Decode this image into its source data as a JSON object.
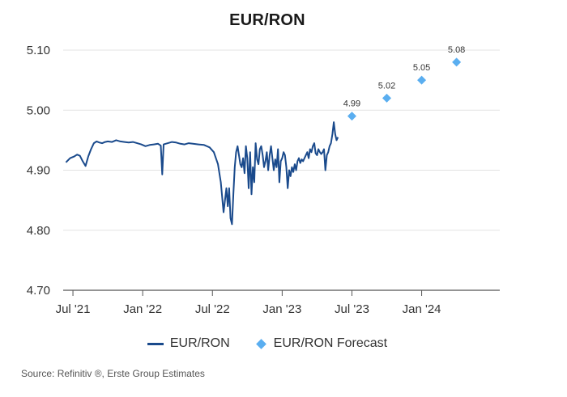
{
  "chart_data": {
    "type": "line",
    "title": "EUR/RON",
    "xlabel": "",
    "ylabel": "",
    "ylim": [
      4.7,
      5.1
    ],
    "yticks": [
      4.7,
      4.8,
      4.9,
      5.0,
      5.1
    ],
    "ytick_labels": [
      "4.70",
      "4.80",
      "4.90",
      "5.00",
      "5.10"
    ],
    "xlim": [
      2021.5,
      2024.5
    ],
    "xticks": [
      2021.5,
      2022.0,
      2022.5,
      2023.0,
      2023.5,
      2024.0
    ],
    "xtick_labels": [
      "Jul '21",
      "Jan '22",
      "Jul '22",
      "Jan '23",
      "Jul '23",
      "Jan '24"
    ],
    "grid": "horizontal",
    "legend_position": "bottom-center",
    "series": [
      {
        "name": "EUR/RON",
        "type": "line",
        "color": "#1a4a8c",
        "x": [
          2021.45,
          2021.48,
          2021.51,
          2021.53,
          2021.55,
          2021.57,
          2021.59,
          2021.61,
          2021.63,
          2021.65,
          2021.67,
          2021.69,
          2021.71,
          2021.73,
          2021.75,
          2021.78,
          2021.81,
          2021.84,
          2021.87,
          2021.9,
          2021.93,
          2021.96,
          2021.99,
          2022.02,
          2022.05,
          2022.08,
          2022.11,
          2022.13,
          2022.14,
          2022.15,
          2022.18,
          2022.21,
          2022.24,
          2022.27,
          2022.3,
          2022.33,
          2022.36,
          2022.4,
          2022.44,
          2022.48,
          2022.51,
          2022.54,
          2022.56,
          2022.58,
          2022.6,
          2022.61,
          2022.62,
          2022.63,
          2022.64,
          2022.65,
          2022.66,
          2022.67,
          2022.68,
          2022.69,
          2022.7,
          2022.71,
          2022.72,
          2022.73,
          2022.74,
          2022.75,
          2022.76,
          2022.77,
          2022.78,
          2022.79,
          2022.8,
          2022.81,
          2022.82,
          2022.83,
          2022.84,
          2022.85,
          2022.86,
          2022.87,
          2022.88,
          2022.89,
          2022.9,
          2022.91,
          2022.92,
          2022.93,
          2022.94,
          2022.95,
          2022.96,
          2022.97,
          2022.98,
          2022.99,
          2023.0,
          2023.01,
          2023.02,
          2023.03,
          2023.04,
          2023.05,
          2023.06,
          2023.07,
          2023.08,
          2023.09,
          2023.1,
          2023.11,
          2023.12,
          2023.13,
          2023.14,
          2023.15,
          2023.16,
          2023.17,
          2023.18,
          2023.19,
          2023.2,
          2023.21,
          2023.22,
          2023.23,
          2023.24,
          2023.25,
          2023.26,
          2023.27,
          2023.28,
          2023.29,
          2023.3,
          2023.31,
          2023.32,
          2023.33,
          2023.34,
          2023.35,
          2023.36,
          2023.37,
          2023.38,
          2023.39,
          2023.4
        ],
        "y": [
          4.913,
          4.92,
          4.923,
          4.926,
          4.924,
          4.915,
          4.907,
          4.923,
          4.935,
          4.945,
          4.948,
          4.946,
          4.945,
          4.947,
          4.948,
          4.947,
          4.95,
          4.948,
          4.947,
          4.946,
          4.947,
          4.945,
          4.943,
          4.94,
          4.942,
          4.943,
          4.944,
          4.941,
          4.893,
          4.943,
          4.945,
          4.947,
          4.946,
          4.944,
          4.943,
          4.945,
          4.944,
          4.943,
          4.942,
          4.938,
          4.93,
          4.91,
          4.88,
          4.83,
          4.87,
          4.84,
          4.87,
          4.82,
          4.81,
          4.86,
          4.905,
          4.93,
          4.94,
          4.925,
          4.91,
          4.905,
          4.92,
          4.895,
          4.94,
          4.92,
          4.87,
          4.93,
          4.86,
          4.905,
          4.88,
          4.945,
          4.918,
          4.91,
          4.935,
          4.94,
          4.925,
          4.905,
          4.915,
          4.93,
          4.9,
          4.925,
          4.94,
          4.92,
          4.9,
          4.918,
          4.905,
          4.935,
          4.88,
          4.915,
          4.92,
          4.93,
          4.925,
          4.905,
          4.87,
          4.9,
          4.89,
          4.905,
          4.897,
          4.91,
          4.9,
          4.915,
          4.92,
          4.912,
          4.918,
          4.915,
          4.92,
          4.925,
          4.93,
          4.92,
          4.935,
          4.93,
          4.94,
          4.945,
          4.928,
          4.925,
          4.935,
          4.93,
          4.927,
          4.93,
          4.935,
          4.9,
          4.925,
          4.93,
          4.94,
          4.945,
          4.96,
          4.98,
          4.96,
          4.95,
          4.955
        ]
      },
      {
        "name": "EUR/RON Forecast",
        "type": "scatter",
        "color": "#5aaef0",
        "x": [
          2023.5,
          2023.75,
          2024.0,
          2024.25
        ],
        "y": [
          4.99,
          5.02,
          5.05,
          5.08
        ],
        "labels": [
          "4.99",
          "5.02",
          "5.05",
          "5.08"
        ]
      }
    ]
  },
  "legend": {
    "line_label": "EUR/RON",
    "forecast_label": "EUR/RON Forecast"
  },
  "source": "Source: Refinitiv ®, Erste Group Estimates"
}
